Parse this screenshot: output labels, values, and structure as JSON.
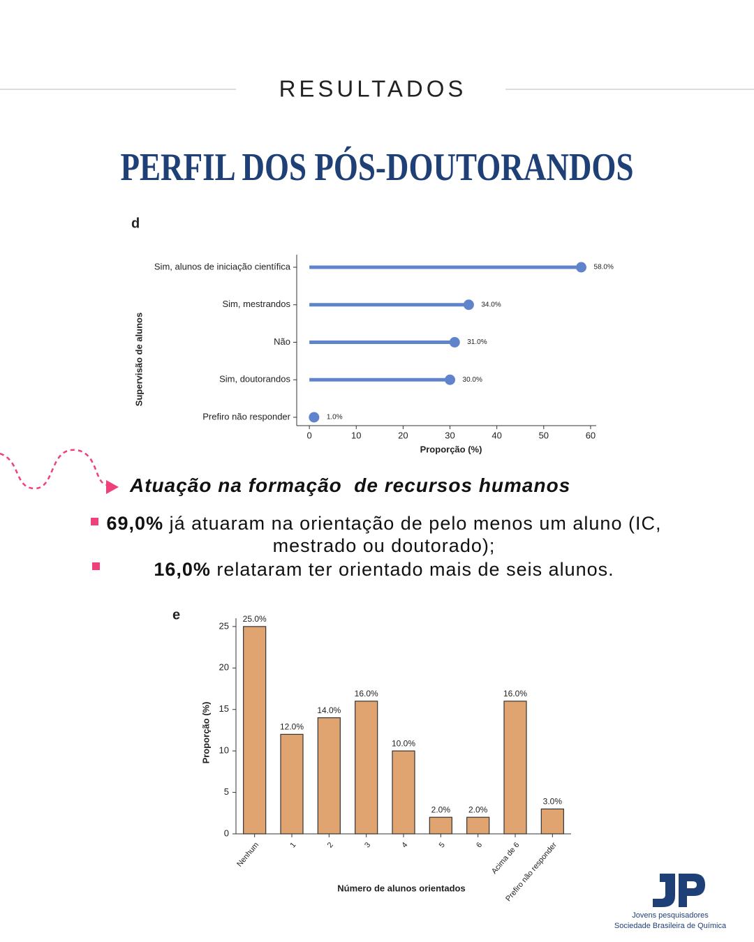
{
  "header": {
    "kicker": "RESULTADOS",
    "title": "PERFIL DOS PÓS-DOUTORANDOS"
  },
  "chart_data": [
    {
      "type": "lollipop",
      "panel": "d",
      "title": "Supervisão de alunos",
      "x_label": "Proporção (%)",
      "categories": [
        "Sim, alunos de iniciação científica",
        "Sim, mestrandos",
        "Não",
        "Sim, doutorandos",
        "Prefiro não responder"
      ],
      "values": [
        58,
        34,
        31,
        30,
        1
      ],
      "value_labels": [
        "58.0%",
        "34.0%",
        "31.0%",
        "30.0%",
        "1.0%"
      ],
      "color": "#5f84cb",
      "xlim": [
        -2.7,
        61.2
      ],
      "xticks": [
        0,
        10,
        20,
        30,
        40,
        50,
        60
      ]
    },
    {
      "type": "bar",
      "panel": "e",
      "x_label": "Número de alunos orientados",
      "y_label": "Proporção (%)",
      "categories": [
        "Nenhum",
        "1",
        "2",
        "3",
        "4",
        "5",
        "6",
        "Acima de 6",
        "Prefiro não responder"
      ],
      "values": [
        25,
        12,
        14,
        16,
        10,
        2,
        2,
        16,
        3
      ],
      "value_labels": [
        "25.0%",
        "12.0%",
        "14.0%",
        "16.0%",
        "10.0%",
        "2.0%",
        "2.0%",
        "16.0%",
        "3.0%"
      ],
      "color": "#e0a470",
      "ylim": [
        0,
        26
      ],
      "yticks": [
        0,
        5,
        10,
        15,
        20,
        25
      ]
    }
  ],
  "section": {
    "heading": "Atuação na formação  de recursos humanos",
    "bullets": [
      {
        "highlight": "69,0%",
        "text": " já atuaram na orientação de pelo menos um aluno (IC, mestrado ou doutorado);"
      },
      {
        "highlight": "16,0%",
        "text": " relataram ter orientado mais de seis alunos."
      }
    ]
  },
  "footer": {
    "line1": "Jovens pesquisadores",
    "line2": "Sociedade Brasileira de Química"
  }
}
